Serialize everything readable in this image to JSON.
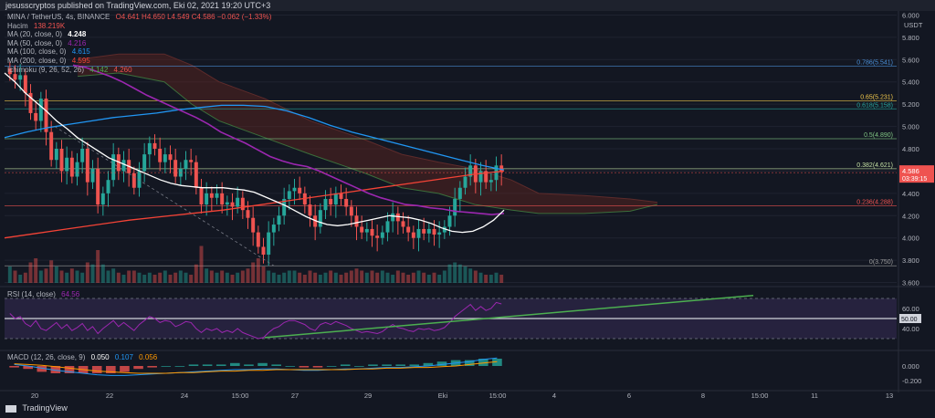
{
  "header": {
    "published": "jesusscryptos published on TradingView.com, Eki 02, 2021 19:20 UTC+3"
  },
  "legend": {
    "symbol": "MINA / TetherUS, 4s, BINANCE",
    "ohlc": "O4.641  H4.650  L4.549  C4.586  −0.062 (−1.33%)",
    "volume_label": "Hacim",
    "volume_value": "138.219K",
    "ma20_label": "MA (20, close, 0)",
    "ma20_value": "4.248",
    "ma50_label": "MA (50, close, 0)",
    "ma50_value": "4.216",
    "ma100_label": "MA (100, close, 0)",
    "ma100_value": "4.615",
    "ma200_label": "MA (200, close, 0)",
    "ma200_value": "4.595",
    "ichimoku_label": "Ichimoku (9, 26, 52, 26)",
    "ichimoku_v1": "4.142",
    "ichimoku_v2": "4.260",
    "rsi_label": "RSI (14, close)",
    "rsi_value": "64.56",
    "macd_label": "MACD (12, 26, close, 9)",
    "macd_v1": "0.050",
    "macd_v2": "0.107",
    "macd_v3": "0.056"
  },
  "branding": {
    "logo_text": "TradingView"
  },
  "colors": {
    "background": "#131722",
    "up": "#26a69a",
    "down": "#ef5350",
    "ma20": "#ffffff",
    "ma50": "#9c27b0",
    "ma100": "#2196f3",
    "ma200": "#f44336",
    "rsi_line": "#9c27b0",
    "trendline": "#4caf50"
  },
  "chart_data": [
    {
      "type": "candlestick",
      "title": "MINA / TetherUS, 4s, BINANCE",
      "price_axis": {
        "ticks": [
          "6.000",
          "5.800",
          "5.600",
          "5.400",
          "5.200",
          "5.000",
          "4.800",
          "4.600",
          "4.400",
          "4.200",
          "4.000",
          "3.800",
          "3.600"
        ],
        "currency": "USDT",
        "range": [
          3.58,
          6.02
        ]
      },
      "time_axis": {
        "ticks": [
          "20",
          "22",
          "24",
          "15:00",
          "27",
          "29",
          "Eki",
          "15:00",
          "4",
          "6",
          "8",
          "15:00",
          "11",
          "13"
        ]
      },
      "fibonacci": [
        {
          "ratio": "0.786",
          "price": 5.541,
          "label": "0.786(5.541)",
          "color": "#4a90d9"
        },
        {
          "ratio": "0.65",
          "price": 5.231,
          "label": "0.65(5.231)",
          "color": "#f2c94c"
        },
        {
          "ratio": "0.618",
          "price": 5.158,
          "label": "0.618(5.158)",
          "color": "#26a69a"
        },
        {
          "ratio": "0.5",
          "price": 4.89,
          "label": "0.5(4.890)",
          "color": "#81c784"
        },
        {
          "ratio": "0.382",
          "price": 4.621,
          "label": "0.382(4.621)",
          "color": "#c5e1a5"
        },
        {
          "ratio": "0.236",
          "price": 4.288,
          "label": "0.236(4.288)",
          "color": "#ef5350"
        },
        {
          "ratio": "0",
          "price": 3.75,
          "label": "0(3.750)",
          "color": "#9e9e9e"
        }
      ],
      "last_price": {
        "value": "4.586",
        "countdown": "03:39:15"
      },
      "close": [
        5.47,
        5.42,
        5.46,
        5.3,
        5.12,
        5.05,
        5.25,
        4.95,
        4.7,
        4.8,
        4.6,
        4.72,
        4.55,
        4.68,
        4.8,
        4.5,
        4.62,
        4.3,
        4.4,
        4.52,
        4.75,
        4.6,
        4.7,
        4.58,
        4.45,
        4.6,
        4.75,
        4.85,
        4.8,
        4.68,
        4.75,
        4.7,
        4.55,
        4.62,
        4.7,
        4.68,
        4.45,
        4.3,
        4.4,
        4.36,
        4.4,
        4.3,
        4.32,
        4.28,
        4.36,
        4.25,
        4.18,
        4.05,
        3.92,
        3.85,
        4.05,
        4.12,
        4.2,
        4.35,
        4.42,
        4.45,
        4.4,
        4.3,
        4.2,
        4.1,
        4.25,
        4.35,
        4.3,
        4.4,
        4.35,
        4.28,
        4.2,
        4.1,
        4.05,
        4.08,
        4.02,
        4.0,
        4.05,
        4.15,
        4.22,
        4.15,
        4.1,
        4.05,
        4.0,
        4.08,
        4.04,
        4.08,
        4.03,
        4.05,
        4.1,
        4.2,
        4.35,
        4.45,
        4.55,
        4.65,
        4.5,
        4.6,
        4.5,
        4.52,
        4.65,
        4.59
      ],
      "volume_relative": [
        0.4,
        0.3,
        0.2,
        0.25,
        0.5,
        0.6,
        0.3,
        0.35,
        0.55,
        0.4,
        0.3,
        0.25,
        0.35,
        0.3,
        0.25,
        0.5,
        0.45,
        0.8,
        0.45,
        0.3,
        0.35,
        0.25,
        0.2,
        0.3,
        0.3,
        0.25,
        0.2,
        0.25,
        0.2,
        0.25,
        0.3,
        0.2,
        0.25,
        0.3,
        0.25,
        0.2,
        0.45,
        0.9,
        0.35,
        0.3,
        0.25,
        0.3,
        0.25,
        0.2,
        0.25,
        0.3,
        0.35,
        0.5,
        0.6,
        0.4,
        0.3,
        0.25,
        0.2,
        0.25,
        0.3,
        0.3,
        0.25,
        0.2,
        0.3,
        0.25,
        0.2,
        0.25,
        0.3,
        0.25,
        0.2,
        0.25,
        0.3,
        0.35,
        0.3,
        0.25,
        0.3,
        0.25,
        0.3,
        0.25,
        0.2,
        0.3,
        0.25,
        0.2,
        0.25,
        0.3,
        0.25,
        0.2,
        0.25,
        0.2,
        0.3,
        0.45,
        0.5,
        0.45,
        0.4,
        0.35,
        0.3,
        0.25,
        0.2,
        0.2,
        0.25,
        0.2
      ],
      "ma20": [
        5.48,
        5.4,
        5.3,
        5.22,
        5.14,
        5.05,
        4.98,
        4.9,
        4.84,
        4.78,
        4.72,
        4.68,
        4.64,
        4.6,
        4.56,
        4.52,
        4.49,
        4.47,
        4.46,
        4.45,
        4.45,
        4.45,
        4.44,
        4.43,
        4.41,
        4.37,
        4.33,
        4.29,
        4.24,
        4.19,
        4.15,
        4.12,
        4.11,
        4.12,
        4.14,
        4.16,
        4.18,
        4.2,
        4.19,
        4.18,
        4.16,
        4.13,
        4.09,
        4.06,
        4.05,
        4.06,
        4.1,
        4.16,
        4.25
      ],
      "ma50": [
        5.55,
        5.53,
        5.49,
        5.45,
        5.4,
        5.34,
        5.28,
        5.23,
        5.18,
        5.13,
        5.08,
        5.02,
        4.95,
        4.9,
        4.85,
        4.79,
        4.73,
        4.69,
        4.66,
        4.64,
        4.6,
        4.55,
        4.5,
        4.45,
        4.4,
        4.36,
        4.33,
        4.3,
        4.29,
        4.27,
        4.26,
        4.24,
        4.23,
        4.22,
        4.21,
        4.22
      ],
      "ma100": [
        4.9,
        4.95,
        4.99,
        5.02,
        5.05,
        5.08,
        5.1,
        5.12,
        5.15,
        5.17,
        5.19,
        5.19,
        5.18,
        5.14,
        5.08,
        5.01,
        4.95,
        4.9,
        4.85,
        4.8,
        4.75,
        4.7,
        4.65,
        4.61
      ],
      "ma200": [
        4.0,
        4.04,
        4.08,
        4.12,
        4.16,
        4.19,
        4.22,
        4.25,
        4.29,
        4.33,
        4.37,
        4.41,
        4.45,
        4.49,
        4.53,
        4.57,
        4.6
      ]
    },
    {
      "type": "line",
      "title": "RSI (14, close)",
      "ticks": [
        "60.00",
        "50.00",
        "40.00"
      ],
      "ylim": [
        20,
        80
      ],
      "bands": [
        70,
        50,
        30
      ],
      "values": [
        55,
        50,
        52,
        45,
        42,
        48,
        40,
        38,
        42,
        46,
        40,
        44,
        38,
        41,
        45,
        38,
        42,
        35,
        40,
        44,
        48,
        42,
        46,
        42,
        38,
        44,
        48,
        52,
        50,
        46,
        48,
        47,
        42,
        44,
        47,
        46,
        40,
        36,
        40,
        38,
        40,
        36,
        38,
        36,
        40,
        36,
        34,
        32,
        30,
        31,
        36,
        40,
        42,
        46,
        48,
        48,
        46,
        44,
        40,
        38,
        44,
        46,
        44,
        47,
        45,
        43,
        40,
        38,
        36,
        37,
        36,
        35,
        37,
        41,
        44,
        41,
        40,
        38,
        37,
        40,
        39,
        40,
        38,
        39,
        41,
        46,
        52,
        56,
        60,
        64,
        58,
        62,
        58,
        60,
        66,
        64.56
      ]
    },
    {
      "type": "line",
      "title": "MACD (12, 26, close, 9)",
      "ticks": [
        "0.000",
        "-0.200"
      ],
      "ylim": [
        -0.3,
        0.2
      ],
      "macd": [
        0.02,
        0.0,
        -0.03,
        -0.06,
        -0.08,
        -0.1,
        -0.12,
        -0.13,
        -0.13,
        -0.12,
        -0.11,
        -0.1,
        -0.09,
        -0.08,
        -0.07,
        -0.06,
        -0.05,
        -0.05,
        -0.04,
        -0.04,
        -0.05,
        -0.06,
        -0.06,
        -0.05,
        -0.04,
        -0.04,
        -0.03,
        -0.02,
        -0.02,
        -0.01,
        0.0,
        0.02,
        0.04,
        0.06,
        0.09,
        0.11
      ],
      "signal": [
        0.03,
        0.02,
        0.01,
        -0.01,
        -0.03,
        -0.05,
        -0.07,
        -0.08,
        -0.09,
        -0.1,
        -0.1,
        -0.1,
        -0.09,
        -0.09,
        -0.08,
        -0.07,
        -0.07,
        -0.06,
        -0.06,
        -0.05,
        -0.05,
        -0.05,
        -0.05,
        -0.05,
        -0.05,
        -0.04,
        -0.04,
        -0.03,
        -0.03,
        -0.02,
        -0.02,
        -0.01,
        0.0,
        0.02,
        0.04,
        0.06
      ]
    }
  ]
}
